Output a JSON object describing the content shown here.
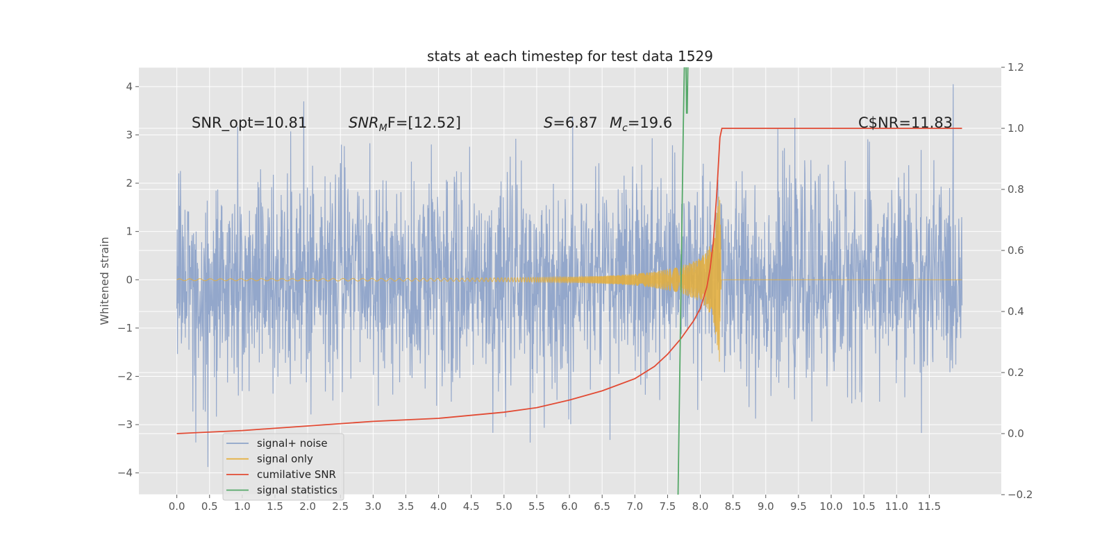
{
  "chart_data": {
    "type": "line",
    "title": "stats at each timestep for test data 1529",
    "xlabel": "",
    "ylabel": "Whitened strain",
    "xlim": [
      -0.58,
      12.6
    ],
    "ylim": [
      -4.45,
      4.4
    ],
    "y2lim": [
      -0.2,
      1.2
    ],
    "grid": true,
    "x_ticks": [
      "0.0",
      "0.5",
      "1.0",
      "1.5",
      "2.0",
      "2.5",
      "3.0",
      "3.5",
      "4.0",
      "4.5",
      "5.0",
      "5.5",
      "6.0",
      "6.5",
      "7.0",
      "7.5",
      "8.0",
      "8.5",
      "9.0",
      "9.5",
      "10.0",
      "10.5",
      "11.0",
      "11.5"
    ],
    "y_ticks": [
      "4",
      "3",
      "2",
      "1",
      "0",
      "−1",
      "−2",
      "−3",
      "−4"
    ],
    "y2_ticks": [
      "1.2",
      "1.0",
      "0.8",
      "0.6",
      "0.4",
      "0.2",
      "0.0",
      "−0.2"
    ],
    "annotations": {
      "snr_opt": "SNR_opt=10.81",
      "snr_mf_main": "SNR",
      "snr_mf_sub": "M",
      "snr_mf_rest": "F=[12.52]",
      "s_main": "S",
      "s_rest": "=6.87",
      "mc_main": "M",
      "mc_sub": "c",
      "mc_rest": "=19.6",
      "csnr": "C$NR=11.83"
    },
    "legend": {
      "position": "lower-left",
      "entries": [
        "signal+ noise",
        "signal only",
        "cumilative SNR",
        "signal statistics"
      ]
    },
    "series": [
      {
        "name": "signal+ noise",
        "axis": "left",
        "color": "#8ea3c9",
        "description_envelope": {
          "x_range": [
            0.0,
            12.0
          ],
          "typical_band": [
            -2.0,
            2.0
          ],
          "min": -4.1,
          "max": 4.05
        }
      },
      {
        "name": "signal only",
        "axis": "left",
        "color": "#e5ae38",
        "x": [
          0.0,
          4.0,
          5.0,
          6.0,
          6.5,
          7.0,
          7.3,
          7.6,
          7.8,
          8.0,
          8.1,
          8.2,
          8.3,
          8.32,
          12.0
        ],
        "amplitude": [
          0.02,
          0.03,
          0.04,
          0.06,
          0.08,
          0.12,
          0.17,
          0.25,
          0.33,
          0.45,
          0.6,
          0.85,
          1.9,
          0.0,
          0.0
        ]
      },
      {
        "name": "cumilative SNR",
        "axis": "right",
        "color": "#e24a33",
        "x": [
          0.0,
          1.0,
          2.0,
          3.0,
          4.0,
          5.0,
          5.5,
          6.0,
          6.5,
          7.0,
          7.3,
          7.5,
          7.7,
          7.9,
          8.0,
          8.1,
          8.15,
          8.2,
          8.25,
          8.3,
          8.33,
          12.0
        ],
        "values": [
          0.0,
          0.01,
          0.025,
          0.04,
          0.05,
          0.07,
          0.085,
          0.11,
          0.14,
          0.18,
          0.22,
          0.26,
          0.31,
          0.37,
          0.41,
          0.48,
          0.54,
          0.63,
          0.78,
          0.97,
          1.0,
          1.0
        ]
      },
      {
        "name": "signal statistics",
        "axis": "right",
        "color": "#55a868",
        "x": [
          7.66,
          7.7,
          7.74,
          7.76,
          7.78,
          7.79,
          7.8,
          7.81,
          7.83
        ],
        "values": [
          -0.2,
          0.4,
          1.0,
          1.25,
          1.25,
          1.05,
          1.05,
          1.2,
          1.25
        ]
      }
    ]
  }
}
